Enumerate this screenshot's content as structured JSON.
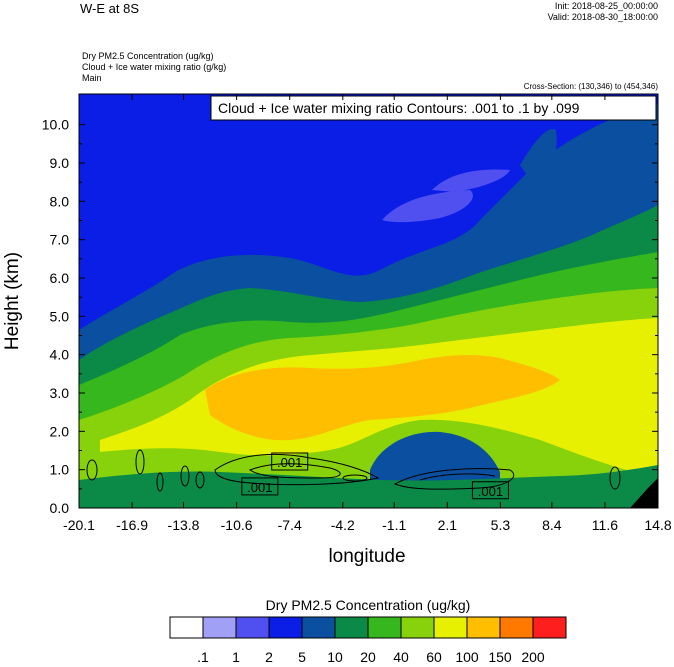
{
  "header": {
    "title": "W-E at 8S",
    "init": "Init: 2018-08-25_00:00:00",
    "valid": "Valid: 2018-08-30_18:00:00",
    "fields": [
      "Dry PM2.5 Concentration   (ug/kg)",
      "Cloud + Ice water mixing ratio   (g/kg)",
      "Main"
    ],
    "cross_section": "Cross-Section: (130,346) to (454,346)"
  },
  "colors": {
    "levels": [
      "#ffffff",
      "#a0a0f6",
      "#5050f0",
      "#0a1ee6",
      "#0a4fa0",
      "#0a8a46",
      "#37b71e",
      "#87d20a",
      "#e6f000",
      "#ffbe00",
      "#ff7800",
      "#ff1e1e"
    ]
  },
  "chart_data": {
    "type": "contour",
    "xlabel": "longitude",
    "ylabel": "Height (km)",
    "xlim": [
      -20.1,
      14.8
    ],
    "ylim": [
      0,
      10.8
    ],
    "x_ticks": [
      "-20.1",
      "-16.9",
      "-13.8",
      "-10.6",
      "-7.4",
      "-4.2",
      "-1.1",
      "2.1",
      "5.3",
      "8.4",
      "11.6",
      "14.8"
    ],
    "y_ticks": [
      "0.0",
      "1.0",
      "2.0",
      "3.0",
      "4.0",
      "5.0",
      "6.0",
      "7.0",
      "8.0",
      "9.0",
      "10.0"
    ],
    "contour_note": "Cloud + Ice water mixing ratio Contours: .001 to .1 by .099",
    "contour_labels": [
      {
        "text": ".001",
        "x": -7.4,
        "y": 1.2
      },
      {
        "text": ".001",
        "x": -9.2,
        "y": 0.55
      },
      {
        "text": ".001",
        "x": 4.7,
        "y": 0.45
      }
    ],
    "colorbar": {
      "title": "Dry PM2.5 Concentration  (ug/kg)",
      "labels": [
        ".1",
        "1",
        "2",
        "5",
        "10",
        "20",
        "40",
        "60",
        "100",
        "150",
        "200"
      ]
    },
    "regions": {
      "above_7km": "5 ug/kg band with patches of 2",
      "3_to_5km": "60-150 ug/kg band",
      "near_surface_east": "10-20 ug/kg"
    }
  }
}
